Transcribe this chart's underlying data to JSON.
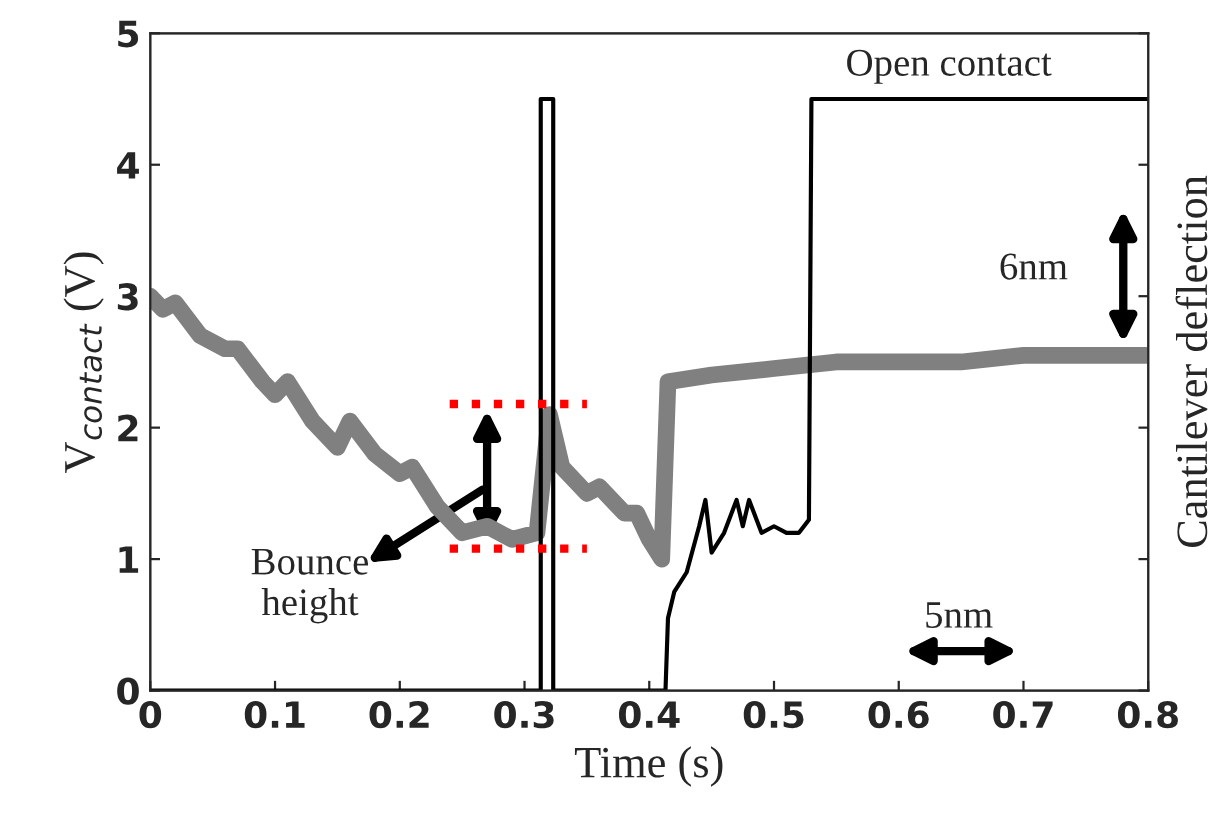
{
  "chart_data": {
    "type": "line",
    "xlabel": "Time (s)",
    "ylabel": "V$_{contact}$ (V)",
    "y2label": "Cantilever deflection",
    "xlim": [
      0,
      0.8
    ],
    "ylim": [
      0,
      5
    ],
    "xticks": [
      0,
      0.1,
      0.2,
      0.3,
      0.4,
      0.5,
      0.6,
      0.7,
      0.8
    ],
    "yticks": [
      0,
      1,
      2,
      3,
      4,
      5
    ],
    "grid": false,
    "legend": false,
    "marker": "none",
    "series": [
      {
        "color": "#808080",
        "line_style": "solid",
        "x": [
          0,
          0.01,
          0.02,
          0.04,
          0.06,
          0.07,
          0.09,
          0.1,
          0.11,
          0.13,
          0.15,
          0.16,
          0.18,
          0.2,
          0.21,
          0.23,
          0.25,
          0.27,
          0.29,
          0.31,
          0.32,
          0.33,
          0.35,
          0.36,
          0.38,
          0.39,
          0.4,
          0.41,
          0.415,
          0.45,
          0.5,
          0.55,
          0.6,
          0.65,
          0.7,
          0.75,
          0.8
        ],
        "values": [
          3.0,
          2.9,
          2.95,
          2.7,
          2.6,
          2.6,
          2.35,
          2.25,
          2.35,
          2.05,
          1.85,
          2.05,
          1.8,
          1.65,
          1.7,
          1.4,
          1.2,
          1.25,
          1.15,
          1.2,
          2.1,
          1.7,
          1.5,
          1.55,
          1.35,
          1.35,
          1.15,
          1.0,
          2.35,
          2.4,
          2.45,
          2.5,
          2.5,
          2.5,
          2.55,
          2.55,
          2.55
        ]
      },
      {
        "color": "#000000",
        "line_style": "solid",
        "x": [
          0,
          0.313,
          0.313,
          0.323,
          0.323,
          0.413,
          0.415,
          0.42,
          0.43,
          0.44,
          0.445,
          0.45,
          0.46,
          0.47,
          0.475,
          0.48,
          0.49,
          0.5,
          0.51,
          0.52,
          0.528,
          0.53,
          0.8
        ],
        "values": [
          0,
          0,
          4.5,
          4.5,
          0,
          0,
          0.55,
          0.75,
          0.9,
          1.25,
          1.45,
          1.05,
          1.2,
          1.45,
          1.25,
          1.45,
          1.2,
          1.25,
          1.2,
          1.2,
          1.3,
          4.5,
          4.5
        ]
      },
      {
        "color": "#ff0000",
        "line_style": "dotted",
        "x": [
          0.24,
          0.35
        ],
        "values": [
          2.18,
          2.18
        ]
      },
      {
        "color": "#ff0000",
        "line_style": "dotted",
        "x": [
          0.24,
          0.35
        ],
        "values": [
          1.08,
          1.08
        ]
      }
    ],
    "annotations": [
      "Open contact",
      "6nm",
      "5nm",
      "Bounce\nheight"
    ]
  }
}
